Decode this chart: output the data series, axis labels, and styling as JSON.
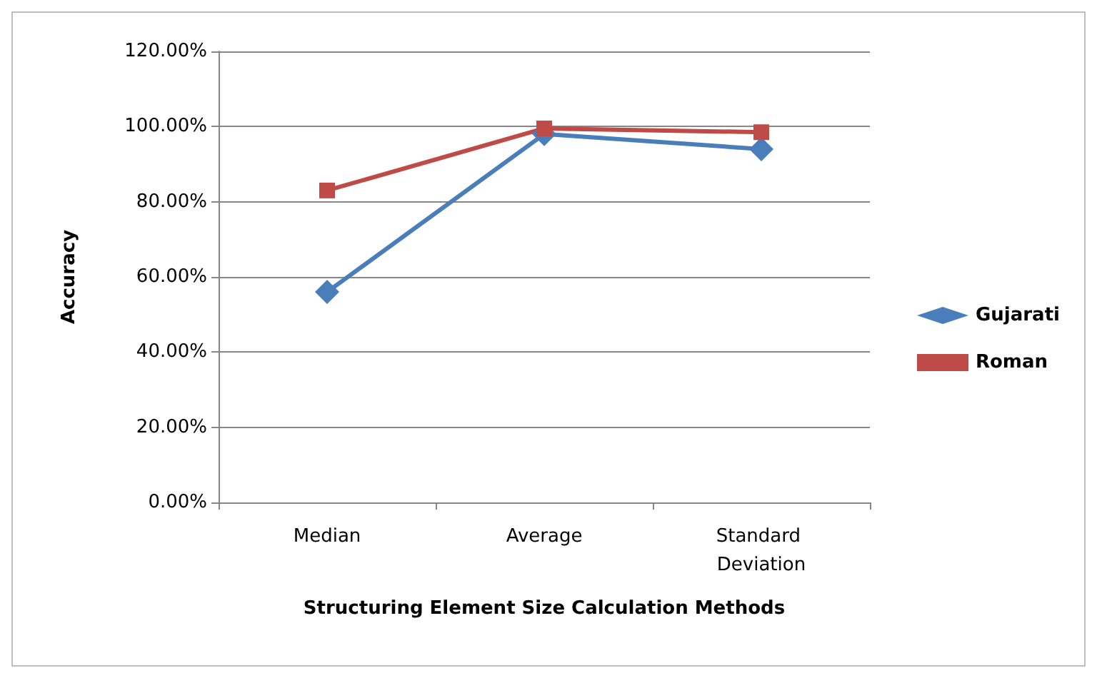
{
  "chart_data": {
    "type": "line",
    "xlabel": "Structuring Element Size Calculation Methods",
    "ylabel": "Accuracy",
    "categories": [
      "Median",
      "Average",
      "Standard Deviation"
    ],
    "series": [
      {
        "name": "Gujarati",
        "color": "#4a7ebb",
        "values": [
          56,
          98,
          94
        ],
        "marker": "diamond"
      },
      {
        "name": "Roman",
        "color": "#be4b48",
        "values": [
          83,
          99.5,
          98.5
        ],
        "marker": "square"
      }
    ],
    "ylim": [
      0,
      120
    ],
    "yticks": [
      {
        "value": 0,
        "label": "0.00%"
      },
      {
        "value": 20,
        "label": "20.00%"
      },
      {
        "value": 40,
        "label": "40.00%"
      },
      {
        "value": 60,
        "label": "60.00%"
      },
      {
        "value": 80,
        "label": "80.00%"
      },
      {
        "value": 100,
        "label": "100.00%"
      },
      {
        "value": 120,
        "label": "120.00%"
      }
    ],
    "grid": "y",
    "legend": "right",
    "line_style": "solid"
  }
}
